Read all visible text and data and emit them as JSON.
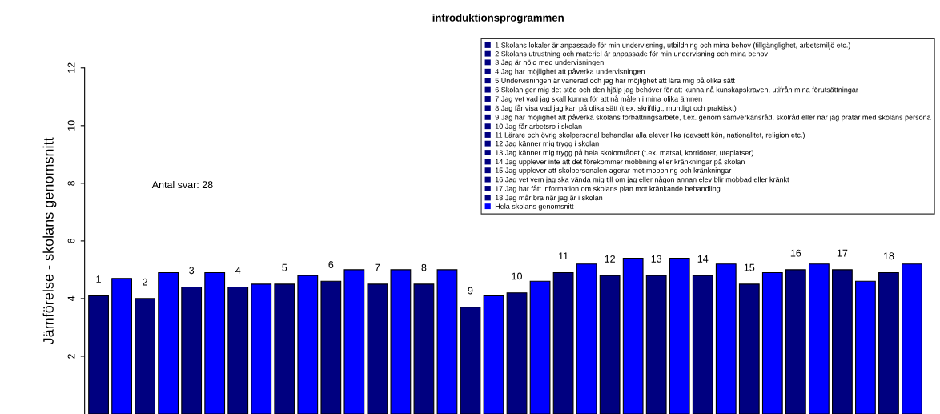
{
  "chart_data": {
    "type": "bar",
    "title": "introduktionsprogrammen",
    "ylabel": "Jämförelse - skolans genomsnitt",
    "categories": [
      "1",
      null,
      "2",
      null,
      "3",
      null,
      "4",
      null,
      "5",
      null,
      "6",
      null,
      "7",
      null,
      "8",
      null,
      "9",
      null,
      "10",
      null,
      "11",
      null,
      "12",
      null,
      "13",
      null,
      "14",
      null,
      "15",
      null,
      "16",
      null,
      "17",
      null,
      "18",
      null
    ],
    "series": [
      {
        "name": "1 Skolans lokaler är anpassade för min undervisning, utbildning och mina behov (tillgänglighet, arbetsmiljö etc.)",
        "color": "#000080",
        "values": [
          4.1,
          null,
          null,
          null,
          null,
          null,
          null,
          null,
          null,
          null,
          null,
          null,
          null,
          null,
          null,
          null,
          null,
          null,
          null,
          null,
          null,
          null,
          null,
          null,
          null,
          null,
          null,
          null,
          null,
          null,
          null,
          null,
          null,
          null,
          null,
          null
        ]
      },
      {
        "name": "2 Skolans utrustning och materiel är anpassade för min undervisning och mina behov",
        "color": "#000080",
        "values": [
          null,
          null,
          4.0,
          null,
          null,
          null,
          null,
          null,
          null,
          null,
          null,
          null,
          null,
          null,
          null,
          null,
          null,
          null,
          null,
          null,
          null,
          null,
          null,
          null,
          null,
          null,
          null,
          null,
          null,
          null,
          null,
          null,
          null,
          null,
          null,
          null
        ]
      },
      {
        "name": "3 Jag är nöjd med undervisningen",
        "color": "#000080",
        "values": [
          null,
          null,
          null,
          null,
          4.4,
          null,
          null,
          null,
          null,
          null,
          null,
          null,
          null,
          null,
          null,
          null,
          null,
          null,
          null,
          null,
          null,
          null,
          null,
          null,
          null,
          null,
          null,
          null,
          null,
          null,
          null,
          null,
          null,
          null,
          null,
          null
        ]
      },
      {
        "name": "4 Jag har möjlighet att påverka undervisningen",
        "color": "#000080",
        "values": [
          null,
          null,
          null,
          null,
          null,
          null,
          4.4,
          null,
          null,
          null,
          null,
          null,
          null,
          null,
          null,
          null,
          null,
          null,
          null,
          null,
          null,
          null,
          null,
          null,
          null,
          null,
          null,
          null,
          null,
          null,
          null,
          null,
          null,
          null,
          null,
          null
        ]
      },
      {
        "name": "5 Undervisningen är varierad och jag har möjlighet att lära mig på olika sätt",
        "color": "#000080",
        "values": [
          null,
          null,
          null,
          null,
          null,
          null,
          null,
          null,
          4.5,
          null,
          null,
          null,
          null,
          null,
          null,
          null,
          null,
          null,
          null,
          null,
          null,
          null,
          null,
          null,
          null,
          null,
          null,
          null,
          null,
          null,
          null,
          null,
          null,
          null,
          null,
          null
        ]
      },
      {
        "name": "6 Skolan ger mig det stöd och den hjälp jag behöver för att kunna nå kunskapskraven, utifrån mina förutsättningar",
        "color": "#000080",
        "values": [
          null,
          null,
          null,
          null,
          null,
          null,
          null,
          null,
          null,
          null,
          4.6,
          null,
          null,
          null,
          null,
          null,
          null,
          null,
          null,
          null,
          null,
          null,
          null,
          null,
          null,
          null,
          null,
          null,
          null,
          null,
          null,
          null,
          null,
          null,
          null,
          null
        ]
      },
      {
        "name": "7 Jag vet vad jag skall kunna för att nå målen i mina olika ämnen",
        "color": "#000080",
        "values": [
          null,
          null,
          null,
          null,
          null,
          null,
          null,
          null,
          null,
          null,
          null,
          null,
          4.5,
          null,
          null,
          null,
          null,
          null,
          null,
          null,
          null,
          null,
          null,
          null,
          null,
          null,
          null,
          null,
          null,
          null,
          null,
          null,
          null,
          null,
          null,
          null
        ]
      },
      {
        "name": "8 Jag får visa vad jag kan på olika sätt (t.ex. skriftligt, muntligt och praktiskt)",
        "color": "#000080",
        "values": [
          null,
          null,
          null,
          null,
          null,
          null,
          null,
          null,
          null,
          null,
          null,
          null,
          null,
          null,
          4.5,
          null,
          null,
          null,
          null,
          null,
          null,
          null,
          null,
          null,
          null,
          null,
          null,
          null,
          null,
          null,
          null,
          null,
          null,
          null,
          null,
          null
        ]
      },
      {
        "name": "9 Jag har möjlighet att påverka skolans förbättringsarbete, t.ex. genom samverkansråd, skolråd eller när jag pratar med skolans persona",
        "color": "#000080",
        "values": [
          null,
          null,
          null,
          null,
          null,
          null,
          null,
          null,
          null,
          null,
          null,
          null,
          null,
          null,
          null,
          null,
          3.7,
          null,
          null,
          null,
          null,
          null,
          null,
          null,
          null,
          null,
          null,
          null,
          null,
          null,
          null,
          null,
          null,
          null,
          null,
          null
        ]
      },
      {
        "name": "10 Jag får arbetsro i skolan",
        "color": "#000080",
        "values": [
          null,
          null,
          null,
          null,
          null,
          null,
          null,
          null,
          null,
          null,
          null,
          null,
          null,
          null,
          null,
          null,
          null,
          null,
          4.2,
          null,
          null,
          null,
          null,
          null,
          null,
          null,
          null,
          null,
          null,
          null,
          null,
          null,
          null,
          null,
          null,
          null
        ]
      },
      {
        "name": "11 Lärare och övrig skolpersonal behandlar alla elever lika (oavsett kön, nationalitet, religion etc.)",
        "color": "#000080",
        "values": [
          null,
          null,
          null,
          null,
          null,
          null,
          null,
          null,
          null,
          null,
          null,
          null,
          null,
          null,
          null,
          null,
          null,
          null,
          null,
          null,
          4.9,
          null,
          null,
          null,
          null,
          null,
          null,
          null,
          null,
          null,
          null,
          null,
          null,
          null,
          null,
          null
        ]
      },
      {
        "name": "12 Jag känner mig trygg i skolan",
        "color": "#000080",
        "values": [
          null,
          null,
          null,
          null,
          null,
          null,
          null,
          null,
          null,
          null,
          null,
          null,
          null,
          null,
          null,
          null,
          null,
          null,
          null,
          null,
          null,
          null,
          4.8,
          null,
          null,
          null,
          null,
          null,
          null,
          null,
          null,
          null,
          null,
          null,
          null,
          null
        ]
      },
      {
        "name": "13 Jag känner mig trygg på hela skolområdet (t.ex. matsal, korridorer, uteplatser)",
        "color": "#000080",
        "values": [
          null,
          null,
          null,
          null,
          null,
          null,
          null,
          null,
          null,
          null,
          null,
          null,
          null,
          null,
          null,
          null,
          null,
          null,
          null,
          null,
          null,
          null,
          null,
          null,
          4.8,
          null,
          null,
          null,
          null,
          null,
          null,
          null,
          null,
          null,
          null,
          null
        ]
      },
      {
        "name": "14 Jag upplever inte att det förekommer mobbning eller kränkningar på skolan",
        "color": "#000080",
        "values": [
          null,
          null,
          null,
          null,
          null,
          null,
          null,
          null,
          null,
          null,
          null,
          null,
          null,
          null,
          null,
          null,
          null,
          null,
          null,
          null,
          null,
          null,
          null,
          null,
          null,
          null,
          4.8,
          null,
          null,
          null,
          null,
          null,
          null,
          null,
          null,
          null
        ]
      },
      {
        "name": "15 Jag upplever att skolpersonalen agerar mot mobbning och kränkningar",
        "color": "#000080",
        "values": [
          null,
          null,
          null,
          null,
          null,
          null,
          null,
          null,
          null,
          null,
          null,
          null,
          null,
          null,
          null,
          null,
          null,
          null,
          null,
          null,
          null,
          null,
          null,
          null,
          null,
          null,
          null,
          null,
          4.5,
          null,
          null,
          null,
          null,
          null,
          null,
          null
        ]
      },
      {
        "name": "16 Jag vet vem jag ska vända mig till om jag eller någon annan elev blir mobbad eller kränkt",
        "color": "#000080",
        "values": [
          null,
          null,
          null,
          null,
          null,
          null,
          null,
          null,
          null,
          null,
          null,
          null,
          null,
          null,
          null,
          null,
          null,
          null,
          null,
          null,
          null,
          null,
          null,
          null,
          null,
          null,
          null,
          null,
          null,
          null,
          5.0,
          null,
          null,
          null,
          null,
          null
        ]
      },
      {
        "name": "17 Jag har fått information om skolans plan mot kränkande behandling",
        "color": "#000080",
        "values": [
          null,
          null,
          null,
          null,
          null,
          null,
          null,
          null,
          null,
          null,
          null,
          null,
          null,
          null,
          null,
          null,
          null,
          null,
          null,
          null,
          null,
          null,
          null,
          null,
          null,
          null,
          null,
          null,
          null,
          null,
          null,
          null,
          5.0,
          null,
          null,
          null
        ]
      },
      {
        "name": "18 Jag mår bra när jag är i skolan",
        "color": "#000080",
        "values": [
          null,
          null,
          null,
          null,
          null,
          null,
          null,
          null,
          null,
          null,
          null,
          null,
          null,
          null,
          null,
          null,
          null,
          null,
          null,
          null,
          null,
          null,
          null,
          null,
          null,
          null,
          null,
          null,
          null,
          null,
          null,
          null,
          null,
          null,
          4.9,
          null
        ]
      },
      {
        "name": "Hela skolans genomsnitt",
        "color": "#0000ff",
        "values": [
          null,
          4.7,
          null,
          4.9,
          null,
          4.9,
          null,
          4.5,
          null,
          4.8,
          null,
          5.0,
          null,
          5.0,
          null,
          5.0,
          null,
          4.1,
          null,
          4.6,
          null,
          5.2,
          null,
          5.4,
          null,
          5.4,
          null,
          5.2,
          null,
          4.9,
          null,
          5.2,
          null,
          4.6,
          null,
          5.2
        ]
      }
    ],
    "ylim": [
      0,
      12
    ],
    "yticks": [
      2,
      4,
      6,
      8,
      10,
      12
    ],
    "grid": false,
    "legend": "top right",
    "annotations": [
      "Antal svar: 28"
    ]
  }
}
